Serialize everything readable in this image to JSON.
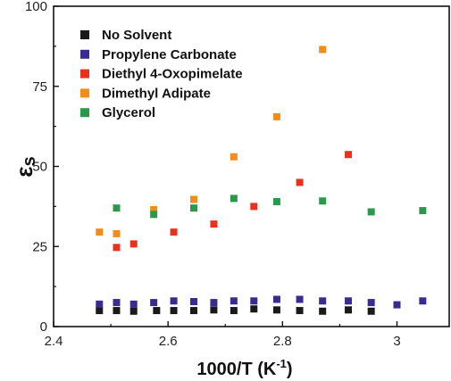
{
  "chart_data": {
    "type": "scatter",
    "xlabel": "1000/T (K",
    "xlabel_sup": "-1",
    "xlabel_tail": ")",
    "ylabel": "ε",
    "ylabel_sub": "s",
    "xlim": [
      2.4,
      3.1
    ],
    "ylim": [
      0,
      100
    ],
    "xticks": [
      2.4,
      2.6,
      2.8,
      3.0
    ],
    "xtick_labels": [
      "2.4",
      "2.6",
      "2.8",
      "3"
    ],
    "yticks": [
      0,
      25,
      50,
      75,
      100
    ],
    "ytick_labels": [
      "0",
      "25",
      "50",
      "75",
      "100"
    ],
    "grid": false,
    "legend_position": "top-left",
    "series": [
      {
        "name": "No Solvent",
        "color": "#1a1a1a",
        "points": [
          [
            2.48,
            5.0
          ],
          [
            2.51,
            5.0
          ],
          [
            2.54,
            4.8
          ],
          [
            2.58,
            5.0
          ],
          [
            2.61,
            5.0
          ],
          [
            2.645,
            5.0
          ],
          [
            2.68,
            5.2
          ],
          [
            2.715,
            5.0
          ],
          [
            2.75,
            5.5
          ],
          [
            2.79,
            5.2
          ],
          [
            2.83,
            5.0
          ],
          [
            2.87,
            4.8
          ],
          [
            2.915,
            5.2
          ],
          [
            2.955,
            4.8
          ]
        ]
      },
      {
        "name": "Propylene Carbonate",
        "color": "#3b2a8f",
        "points": [
          [
            2.48,
            7.0
          ],
          [
            2.51,
            7.5
          ],
          [
            2.54,
            7.0
          ],
          [
            2.575,
            7.5
          ],
          [
            2.61,
            8.0
          ],
          [
            2.645,
            7.8
          ],
          [
            2.68,
            7.5
          ],
          [
            2.715,
            8.0
          ],
          [
            2.75,
            8.0
          ],
          [
            2.79,
            8.5
          ],
          [
            2.83,
            8.5
          ],
          [
            2.87,
            8.0
          ],
          [
            2.915,
            8.0
          ],
          [
            2.955,
            7.5
          ],
          [
            3.0,
            6.8
          ],
          [
            3.045,
            8.0
          ]
        ]
      },
      {
        "name": "Diethyl 4-Oxopimelate",
        "color": "#e8321e",
        "points": [
          [
            2.51,
            24.7
          ],
          [
            2.54,
            25.8
          ],
          [
            2.61,
            29.5
          ],
          [
            2.68,
            32.0
          ],
          [
            2.75,
            37.5
          ],
          [
            2.83,
            45.0
          ],
          [
            2.915,
            53.7
          ]
        ]
      },
      {
        "name": "Dimethyl Adipate",
        "color": "#f28c1a",
        "points": [
          [
            2.48,
            29.5
          ],
          [
            2.51,
            29.0
          ],
          [
            2.575,
            36.5
          ],
          [
            2.645,
            39.7
          ],
          [
            2.715,
            53.0
          ],
          [
            2.79,
            65.5
          ],
          [
            2.87,
            86.5
          ]
        ]
      },
      {
        "name": "Glycerol",
        "color": "#2a9a4a",
        "points": [
          [
            2.51,
            37.0
          ],
          [
            2.575,
            35.0
          ],
          [
            2.645,
            37.0
          ],
          [
            2.715,
            40.0
          ],
          [
            2.79,
            39.0
          ],
          [
            2.87,
            39.2
          ],
          [
            2.955,
            35.8
          ],
          [
            3.045,
            36.2
          ]
        ]
      }
    ]
  }
}
